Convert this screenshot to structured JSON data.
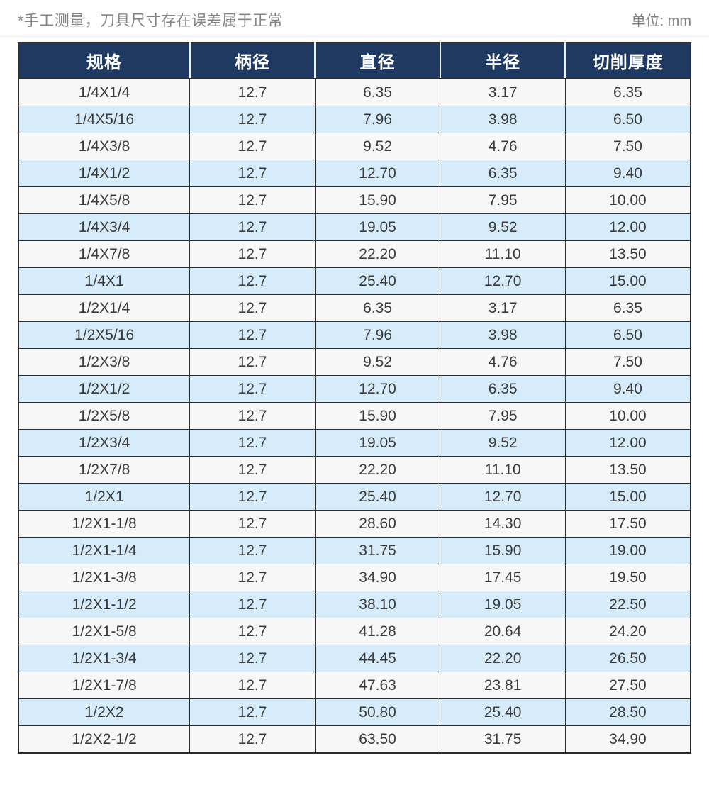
{
  "header": {
    "note": "*手工测量，刀具尺寸存在误差属于正常",
    "unit": "单位: mm"
  },
  "table": {
    "columns": [
      "规格",
      "柄径",
      "直径",
      "半径",
      "切削厚度"
    ],
    "fields": [
      "spec",
      "shank-diameter",
      "diameter",
      "radius",
      "cutting-thickness"
    ],
    "rows": [
      [
        "1/4X1/4",
        "12.7",
        "6.35",
        "3.17",
        "6.35"
      ],
      [
        "1/4X5/16",
        "12.7",
        "7.96",
        "3.98",
        "6.50"
      ],
      [
        "1/4X3/8",
        "12.7",
        "9.52",
        "4.76",
        "7.50"
      ],
      [
        "1/4X1/2",
        "12.7",
        "12.70",
        "6.35",
        "9.40"
      ],
      [
        "1/4X5/8",
        "12.7",
        "15.90",
        "7.95",
        "10.00"
      ],
      [
        "1/4X3/4",
        "12.7",
        "19.05",
        "9.52",
        "12.00"
      ],
      [
        "1/4X7/8",
        "12.7",
        "22.20",
        "11.10",
        "13.50"
      ],
      [
        "1/4X1",
        "12.7",
        "25.40",
        "12.70",
        "15.00"
      ],
      [
        "1/2X1/4",
        "12.7",
        "6.35",
        "3.17",
        "6.35"
      ],
      [
        "1/2X5/16",
        "12.7",
        "7.96",
        "3.98",
        "6.50"
      ],
      [
        "1/2X3/8",
        "12.7",
        "9.52",
        "4.76",
        "7.50"
      ],
      [
        "1/2X1/2",
        "12.7",
        "12.70",
        "6.35",
        "9.40"
      ],
      [
        "1/2X5/8",
        "12.7",
        "15.90",
        "7.95",
        "10.00"
      ],
      [
        "1/2X3/4",
        "12.7",
        "19.05",
        "9.52",
        "12.00"
      ],
      [
        "1/2X7/8",
        "12.7",
        "22.20",
        "11.10",
        "13.50"
      ],
      [
        "1/2X1",
        "12.7",
        "25.40",
        "12.70",
        "15.00"
      ],
      [
        "1/2X1-1/8",
        "12.7",
        "28.60",
        "14.30",
        "17.50"
      ],
      [
        "1/2X1-1/4",
        "12.7",
        "31.75",
        "15.90",
        "19.00"
      ],
      [
        "1/2X1-3/8",
        "12.7",
        "34.90",
        "17.45",
        "19.50"
      ],
      [
        "1/2X1-1/2",
        "12.7",
        "38.10",
        "19.05",
        "22.50"
      ],
      [
        "1/2X1-5/8",
        "12.7",
        "41.28",
        "20.64",
        "24.20"
      ],
      [
        "1/2X1-3/4",
        "12.7",
        "44.45",
        "22.20",
        "26.50"
      ],
      [
        "1/2X1-7/8",
        "12.7",
        "47.63",
        "23.81",
        "27.50"
      ],
      [
        "1/2X2",
        "12.7",
        "50.80",
        "25.40",
        "28.50"
      ],
      [
        "1/2X2-1/2",
        "12.7",
        "63.50",
        "31.75",
        "34.90"
      ]
    ]
  },
  "colors": {
    "header_bg": "#1e3a63",
    "header_text": "#ffffff",
    "row_odd": "#f7f7f7",
    "row_even": "#d7ecfb",
    "cell_border": "#2e2e2e",
    "note_text": "#838383"
  }
}
